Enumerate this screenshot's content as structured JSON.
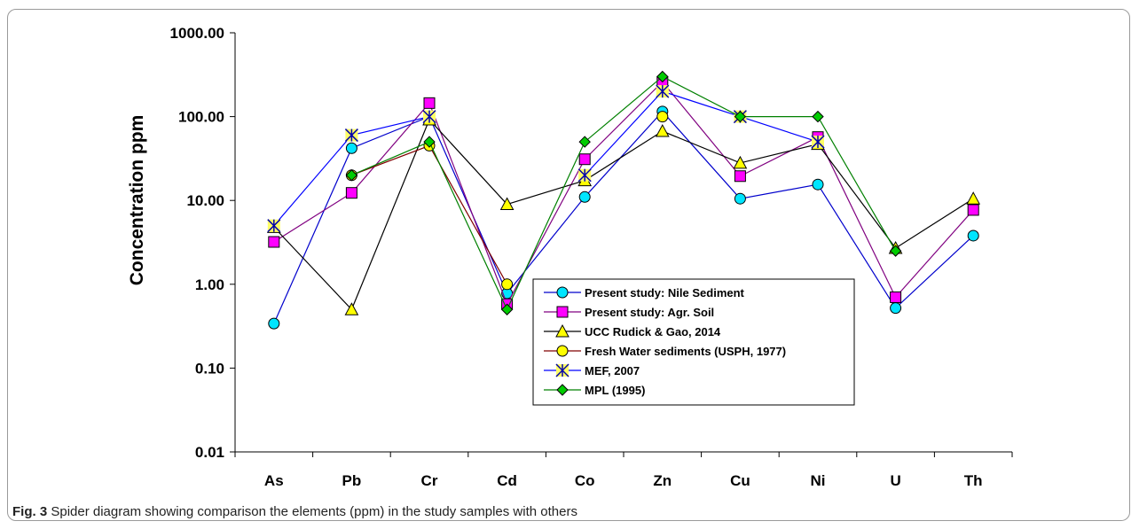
{
  "caption": {
    "label": "Fig. 3",
    "text": "Spider diagram showing comparison the elements (ppm) in the study samples with others"
  },
  "chart_data": {
    "type": "line",
    "title": "",
    "xlabel": "",
    "ylabel": "Concentration ppm",
    "yscale": "log",
    "ylim": [
      0.01,
      1000
    ],
    "yticks": [
      "1000.00",
      "100.00",
      "10.00",
      "1.00",
      "0.10",
      "0.01"
    ],
    "categories": [
      "As",
      "Pb",
      "Cr",
      "Cd",
      "Co",
      "Zn",
      "Cu",
      "Ni",
      "U",
      "Th"
    ],
    "legend_position": "center-right",
    "series": [
      {
        "name": "Present study: Nile Sediment",
        "marker": "circle",
        "color": "#00e5ff",
        "line_color": "#0000cc",
        "values": [
          0.34,
          42,
          100,
          0.78,
          11,
          115,
          10.5,
          15.5,
          0.52,
          3.8
        ]
      },
      {
        "name": "Present study: Agr. Soil",
        "marker": "square",
        "color": "#ff00ff",
        "line_color": "#800080",
        "values": [
          3.2,
          12.3,
          145,
          0.58,
          31,
          260,
          19.5,
          57,
          0.7,
          7.7
        ]
      },
      {
        "name": "UCC  Rudick & Gao, 2014",
        "marker": "triangle",
        "color": "#ffff00",
        "line_color": "#000000",
        "values": [
          4.8,
          0.5,
          92,
          9,
          17.3,
          67,
          28,
          47,
          2.7,
          10.5
        ]
      },
      {
        "name": "Fresh Water  sediments (USPH, 1977)",
        "marker": "circle",
        "color": "#ffff00",
        "line_color": "#800000",
        "values": [
          null,
          20,
          45,
          1.0,
          null,
          100,
          null,
          null,
          null,
          null
        ]
      },
      {
        "name": "MEF, 2007",
        "marker": "asterisk-square",
        "color": "#ffff66",
        "line_color": "#0000ff",
        "values": [
          5,
          60,
          100,
          null,
          20,
          200,
          100,
          50,
          null,
          null
        ]
      },
      {
        "name": "MPL (1995)",
        "marker": "diamond",
        "color": "#00cc00",
        "line_color": "#008000",
        "values": [
          null,
          20,
          50,
          0.5,
          50,
          300,
          100,
          100,
          2.5,
          null
        ]
      }
    ]
  }
}
